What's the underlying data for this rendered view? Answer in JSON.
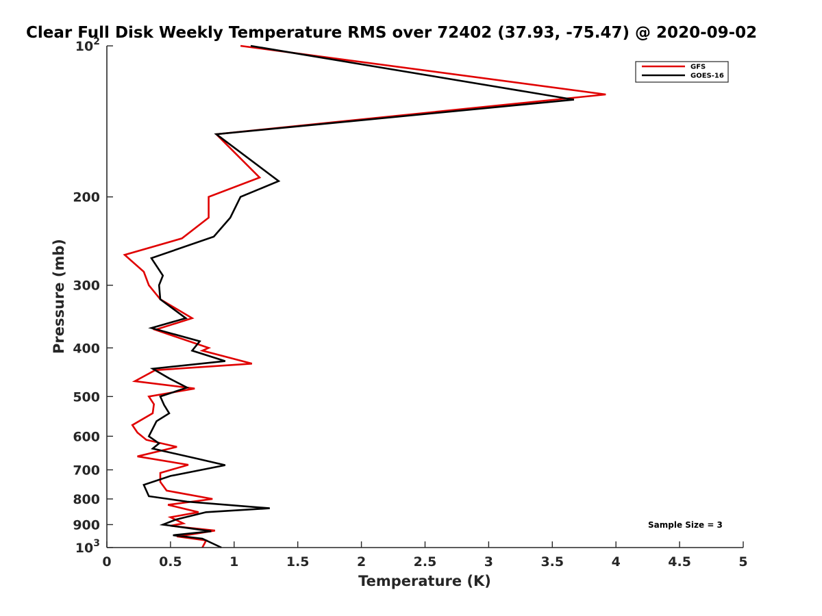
{
  "chart_data": {
    "type": "line",
    "title": "Clear Full Disk Weekly Temperature RMS over 72402 (37.93, -75.47) @ 2020-09-02",
    "xlabel": "Temperature (K)",
    "ylabel": "Pressure (mb)",
    "xlim": [
      0,
      5
    ],
    "ylim": [
      100,
      1000
    ],
    "yscale": "log",
    "y_reversed": true,
    "grid": false,
    "legend_position": "top-right",
    "x_ticks": [
      {
        "value": 0,
        "label": "0"
      },
      {
        "value": 0.5,
        "label": "0.5"
      },
      {
        "value": 1,
        "label": "1"
      },
      {
        "value": 1.5,
        "label": "1.5"
      },
      {
        "value": 2,
        "label": "2"
      },
      {
        "value": 2.5,
        "label": "2.5"
      },
      {
        "value": 3,
        "label": "3"
      },
      {
        "value": 3.5,
        "label": "3.5"
      },
      {
        "value": 4,
        "label": "4"
      },
      {
        "value": 4.5,
        "label": "4.5"
      },
      {
        "value": 5,
        "label": "5"
      }
    ],
    "y_ticks": [
      {
        "value": 100,
        "base": "10",
        "exp": "2"
      },
      {
        "value": 200,
        "label": "200"
      },
      {
        "value": 300,
        "label": "300"
      },
      {
        "value": 400,
        "label": "400"
      },
      {
        "value": 500,
        "label": "500"
      },
      {
        "value": 600,
        "label": "600"
      },
      {
        "value": 700,
        "label": "700"
      },
      {
        "value": 800,
        "label": "800"
      },
      {
        "value": 900,
        "label": "900"
      },
      {
        "value": 1000,
        "base": "10",
        "exp": "3"
      }
    ],
    "series": [
      {
        "name": "GFS",
        "color": "#e00000",
        "points": [
          [
            1.05,
            100
          ],
          [
            3.92,
            125
          ],
          [
            0.86,
            150
          ],
          [
            1.2,
            183
          ],
          [
            0.8,
            200
          ],
          [
            0.8,
            220
          ],
          [
            0.59,
            242
          ],
          [
            0.14,
            261
          ],
          [
            0.29,
            282
          ],
          [
            0.33,
            300
          ],
          [
            0.42,
            320
          ],
          [
            0.67,
            349
          ],
          [
            0.38,
            368
          ],
          [
            0.8,
            400
          ],
          [
            0.75,
            405
          ],
          [
            1.14,
            430
          ],
          [
            0.38,
            443
          ],
          [
            0.22,
            466
          ],
          [
            0.69,
            482
          ],
          [
            0.33,
            500
          ],
          [
            0.37,
            518
          ],
          [
            0.36,
            540
          ],
          [
            0.2,
            570
          ],
          [
            0.24,
            590
          ],
          [
            0.31,
            610
          ],
          [
            0.55,
            630
          ],
          [
            0.24,
            658
          ],
          [
            0.64,
            684
          ],
          [
            0.42,
            710
          ],
          [
            0.42,
            740
          ],
          [
            0.47,
            770
          ],
          [
            0.83,
            800
          ],
          [
            0.48,
            822
          ],
          [
            0.72,
            850
          ],
          [
            0.5,
            870
          ],
          [
            0.6,
            895
          ],
          [
            0.5,
            905
          ],
          [
            0.85,
            925
          ],
          [
            0.68,
            940
          ],
          [
            0.55,
            950
          ],
          [
            0.78,
            968
          ],
          [
            0.75,
            1000
          ]
        ]
      },
      {
        "name": "GOES-16",
        "color": "#000000",
        "points": [
          [
            1.13,
            100
          ],
          [
            3.67,
            128
          ],
          [
            0.86,
            150
          ],
          [
            1.35,
            186
          ],
          [
            1.05,
            200
          ],
          [
            0.97,
            220
          ],
          [
            0.84,
            240
          ],
          [
            0.35,
            265
          ],
          [
            0.44,
            287
          ],
          [
            0.41,
            300
          ],
          [
            0.42,
            320
          ],
          [
            0.62,
            349
          ],
          [
            0.35,
            365
          ],
          [
            0.73,
            388
          ],
          [
            0.67,
            405
          ],
          [
            0.93,
            425
          ],
          [
            0.36,
            440
          ],
          [
            0.49,
            460
          ],
          [
            0.63,
            480
          ],
          [
            0.42,
            500
          ],
          [
            0.45,
            520
          ],
          [
            0.49,
            540
          ],
          [
            0.39,
            560
          ],
          [
            0.33,
            600
          ],
          [
            0.41,
            620
          ],
          [
            0.36,
            635
          ],
          [
            0.71,
            665
          ],
          [
            0.93,
            685
          ],
          [
            0.5,
            720
          ],
          [
            0.29,
            750
          ],
          [
            0.33,
            790
          ],
          [
            0.63,
            810
          ],
          [
            1.28,
            835
          ],
          [
            0.78,
            850
          ],
          [
            0.54,
            880
          ],
          [
            0.44,
            900
          ],
          [
            0.82,
            928
          ],
          [
            0.52,
            945
          ],
          [
            0.75,
            960
          ],
          [
            0.9,
            1000
          ]
        ]
      }
    ],
    "annotation": "Sample Size = 3"
  }
}
